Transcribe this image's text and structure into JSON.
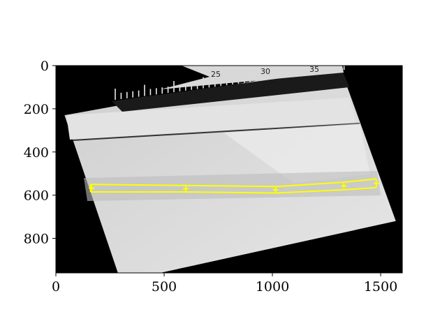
{
  "chart_data": {
    "type": "image-with-overlay",
    "title": "",
    "xlabel": "",
    "ylabel": "",
    "xlim": [
      0,
      1600
    ],
    "ylim": [
      960,
      0
    ],
    "x_ticks": [
      0,
      500,
      1000,
      1500
    ],
    "y_ticks": [
      0,
      200,
      400,
      600,
      800
    ],
    "ruler_labels": [
      "25",
      "30",
      "35"
    ],
    "image": {
      "description_colors": {
        "background": "#000000",
        "light": "#dcdcdc",
        "mid": "#b4b4b4"
      },
      "rotated_quad": [
        [
          40,
          230
        ],
        [
          1310,
          0
        ],
        [
          1570,
          720
        ],
        [
          300,
          1000
        ]
      ]
    },
    "overlay": {
      "color": "#ffff00",
      "upper_curve": {
        "x": [
          160,
          600,
          1020,
          1330,
          1480
        ],
        "y": [
          550,
          555,
          560,
          540,
          525
        ]
      },
      "lower_curve": {
        "x": [
          160,
          600,
          1020,
          1330,
          1480
        ],
        "y": [
          585,
          585,
          590,
          575,
          565
        ]
      },
      "markers": {
        "x": [
          165,
          600,
          1015,
          1330,
          1480
        ],
        "y": [
          567,
          570,
          575,
          557,
          545
        ]
      }
    }
  }
}
